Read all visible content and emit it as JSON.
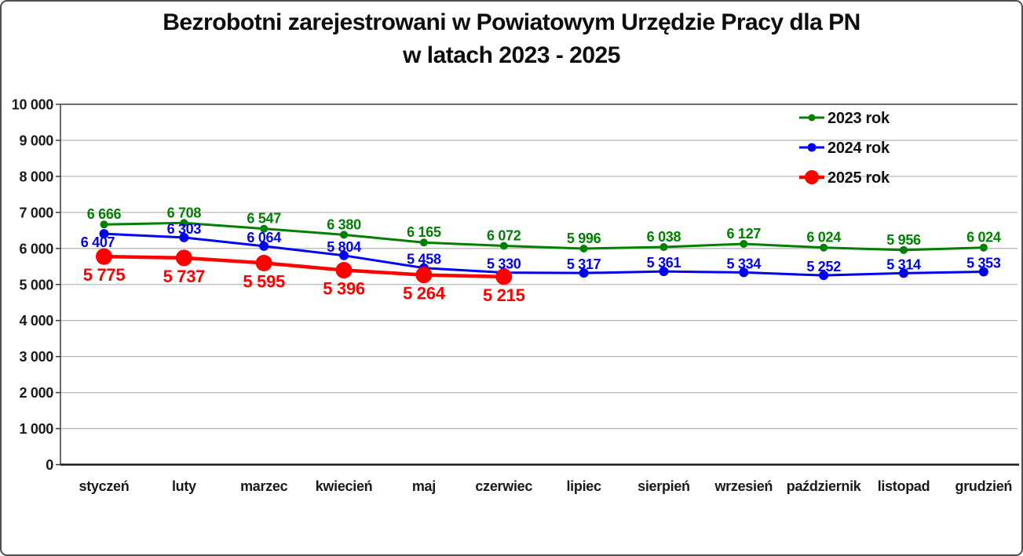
{
  "title_lines": [
    "Bezrobotni zarejestrowani w Powiatowym Urzędzie Pracy dla PN",
    "w latach 2023 - 2025"
  ],
  "chart_data": {
    "type": "line",
    "title": "Bezrobotni zarejestrowani w Powiatowym Urzędzie Pracy dla PN w latach 2023 - 2025",
    "categories": [
      "styczeń",
      "luty",
      "marzec",
      "kwiecień",
      "maj",
      "czerwiec",
      "lipiec",
      "sierpień",
      "wrzesień",
      "październik",
      "listopad",
      "grudzień"
    ],
    "ylim": [
      0,
      10000
    ],
    "ytick_step": 1000,
    "ytick_labels": [
      "0",
      "1 000",
      "2 000",
      "3 000",
      "4 000",
      "5 000",
      "6 000",
      "7 000",
      "8 000",
      "9 000",
      "10 000"
    ],
    "grid": true,
    "legend_position": "top-right",
    "colors": {
      "grid": "#b8b8b8",
      "grid_top": "#6e6e6e",
      "axis": "#1a1a1a",
      "text": "#1a1a1a"
    },
    "series": [
      {
        "name": "2023 rok",
        "color": "#008000",
        "values": [
          6666,
          6708,
          6547,
          6380,
          6165,
          6072,
          5996,
          6038,
          6127,
          6024,
          5956,
          6024
        ],
        "labels": [
          "6 666",
          "6 708",
          "6 547",
          "6 380",
          "6 165",
          "6 072",
          "5 996",
          "6 038",
          "6 127",
          "6 024",
          "5 956",
          "6 024"
        ],
        "label_side": "above"
      },
      {
        "name": "2024 rok",
        "color": "#0000f2",
        "values": [
          6407,
          6303,
          6064,
          5804,
          5458,
          5330,
          5317,
          5361,
          5334,
          5252,
          5314,
          5353
        ],
        "labels": [
          "6 407",
          "6 303",
          "6 064",
          "5 804",
          "5 458",
          "5 330",
          "5 317",
          "5 361",
          "5 334",
          "5 252",
          "5 314",
          "5 353"
        ],
        "label_side": "above",
        "label_overrides": {
          "0": "below-left"
        }
      },
      {
        "name": "2025 rok",
        "color": "#fe0000",
        "values": [
          5775,
          5737,
          5595,
          5396,
          5264,
          5215
        ],
        "labels": [
          "5 775",
          "5 737",
          "5 595",
          "5 396",
          "5 264",
          "5 215"
        ],
        "label_side": "below"
      }
    ]
  }
}
